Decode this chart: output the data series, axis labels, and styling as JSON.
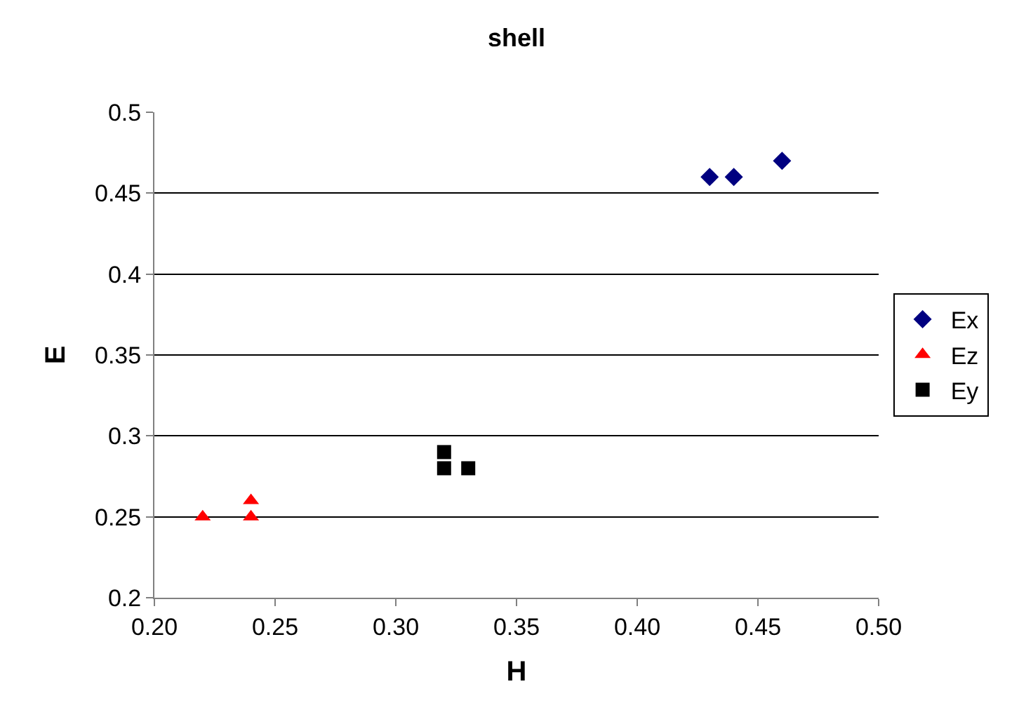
{
  "chart_data": {
    "type": "scatter",
    "title": "shell",
    "xlabel": "H",
    "ylabel": "E",
    "xlim": [
      0.2,
      0.5
    ],
    "xticks": [
      {
        "value": 0.2,
        "label": "0.20"
      },
      {
        "value": 0.25,
        "label": "0.25"
      },
      {
        "value": 0.3,
        "label": "0.30"
      },
      {
        "value": 0.35,
        "label": "0.35"
      },
      {
        "value": 0.4,
        "label": "0.40"
      },
      {
        "value": 0.45,
        "label": "0.45"
      },
      {
        "value": 0.5,
        "label": "0.50"
      }
    ],
    "ylim": [
      0.2,
      0.5
    ],
    "yticks": [
      0.2,
      0.25,
      0.3,
      0.35,
      0.4,
      0.45,
      0.5
    ],
    "grid": "y",
    "legend": "right",
    "series": [
      {
        "name": "Ex",
        "color": "#000080",
        "marker": "diamond",
        "x": [
          0.43,
          0.44,
          0.46
        ],
        "values": [
          0.46,
          0.46,
          0.47
        ]
      },
      {
        "name": "Ez",
        "color": "#ff0000",
        "marker": "triangle",
        "x": [
          0.22,
          0.24,
          0.24
        ],
        "values": [
          0.25,
          0.25,
          0.26
        ]
      },
      {
        "name": "Ey",
        "color": "#000000",
        "marker": "square",
        "x": [
          0.32,
          0.32,
          0.33
        ],
        "values": [
          0.29,
          0.28,
          0.28
        ]
      }
    ]
  }
}
